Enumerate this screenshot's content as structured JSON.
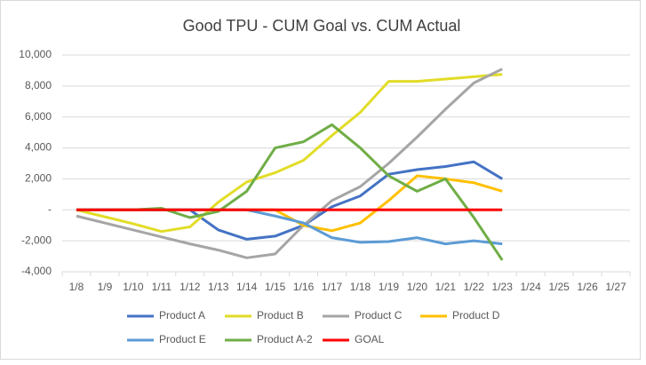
{
  "chart_data": {
    "type": "line",
    "title": "Good TPU - CUM Goal vs. CUM Actual",
    "categories": [
      "1/8",
      "1/9",
      "1/10",
      "1/11",
      "1/12",
      "1/13",
      "1/14",
      "1/15",
      "1/16",
      "1/17",
      "1/18",
      "1/19",
      "1/20",
      "1/21",
      "1/22",
      "1/23",
      "1/24",
      "1/25",
      "1/26",
      "1/27"
    ],
    "series": [
      {
        "name": "Product A",
        "color": "#4472c4",
        "values": [
          0,
          0,
          0,
          0,
          0,
          -1300,
          -1900,
          -1700,
          -1000,
          200,
          900,
          2300,
          2600,
          2800,
          3100,
          2000,
          null,
          null,
          null,
          null
        ]
      },
      {
        "name": "Product B",
        "color": "#e2dc27",
        "values": [
          0,
          -450,
          -900,
          -1400,
          -1100,
          500,
          1800,
          2400,
          3200,
          4800,
          6300,
          8300,
          8300,
          8450,
          8600,
          8750,
          null,
          null,
          null,
          null
        ]
      },
      {
        "name": "Product C",
        "color": "#a5a5a5",
        "values": [
          -400,
          -850,
          -1300,
          -1750,
          -2200,
          -2600,
          -3100,
          -2850,
          -1000,
          600,
          1500,
          3000,
          4700,
          6500,
          8200,
          9100,
          null,
          null,
          null,
          null
        ]
      },
      {
        "name": "Product D",
        "color": "#ffc000",
        "values": [
          0,
          0,
          0,
          0,
          0,
          0,
          0,
          0,
          -1000,
          -1350,
          -850,
          600,
          2200,
          2000,
          1750,
          1200,
          null,
          null,
          null,
          null
        ]
      },
      {
        "name": "Product E",
        "color": "#5b9bd5",
        "values": [
          0,
          0,
          0,
          0,
          0,
          0,
          0,
          -400,
          -850,
          -1800,
          -2100,
          -2050,
          -1800,
          -2200,
          -2000,
          -2200,
          null,
          null,
          null,
          null
        ]
      },
      {
        "name": "Product A-2",
        "color": "#70ad47",
        "values": [
          0,
          0,
          0,
          100,
          -500,
          -100,
          1200,
          4000,
          4400,
          5500,
          4000,
          2200,
          1200,
          2000,
          -500,
          -3250,
          null,
          null,
          null,
          null
        ]
      },
      {
        "name": "GOAL",
        "color": "#ff0000",
        "values": [
          0,
          0,
          0,
          0,
          0,
          0,
          0,
          0,
          0,
          0,
          0,
          0,
          0,
          0,
          0,
          0,
          null,
          null,
          null,
          null
        ]
      }
    ],
    "ylim": [
      -4000,
      10000
    ],
    "yticks": [
      {
        "value": -4000,
        "label": "-4,000"
      },
      {
        "value": -2000,
        "label": "-2,000"
      },
      {
        "value": 0,
        "label": "-"
      },
      {
        "value": 2000,
        "label": "2,000"
      },
      {
        "value": 4000,
        "label": "4,000"
      },
      {
        "value": 6000,
        "label": "6,000"
      },
      {
        "value": 8000,
        "label": "8,000"
      },
      {
        "value": 10000,
        "label": "10,000"
      }
    ],
    "grid": true,
    "legend": "bottom"
  }
}
